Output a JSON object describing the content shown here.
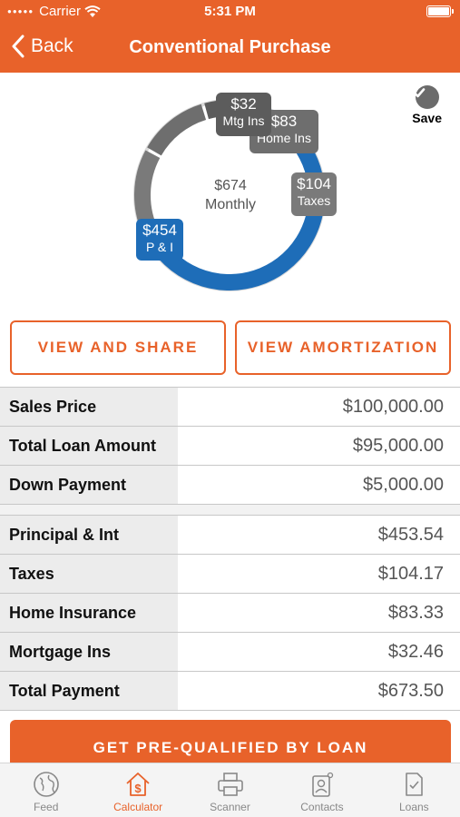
{
  "status_bar": {
    "carrier": "Carrier",
    "time": "5:31 PM"
  },
  "nav": {
    "back_label": "Back",
    "title": "Conventional Purchase"
  },
  "save_label": "Save",
  "chart_data": {
    "type": "pie",
    "center_value": "$674",
    "center_label": "Monthly",
    "slices": [
      {
        "value": "$454",
        "label": "P & I",
        "color": "#1e6db8"
      },
      {
        "value": "$104",
        "label": "Taxes",
        "color": "#7a7a7a"
      },
      {
        "value": "$83",
        "label": "Home Ins",
        "color": "#6e6e6e"
      },
      {
        "value": "$32",
        "label": "Mtg Ins",
        "color": "#5c5c5c"
      }
    ],
    "values": [
      453.54,
      104.17,
      83.33,
      32.46
    ]
  },
  "buttons": {
    "view_share": "VIEW AND SHARE",
    "view_amort": "VIEW AMORTIZATION",
    "prequalify": "GET PRE-QUALIFIED BY LOAN"
  },
  "loan_table": [
    {
      "label": "Sales Price",
      "value": "$100,000.00"
    },
    {
      "label": "Total Loan Amount",
      "value": "$95,000.00"
    },
    {
      "label": "Down Payment",
      "value": "$5,000.00"
    }
  ],
  "payment_table": [
    {
      "label": "Principal & Int",
      "value": "$453.54"
    },
    {
      "label": "Taxes",
      "value": "$104.17"
    },
    {
      "label": "Home Insurance",
      "value": "$83.33"
    },
    {
      "label": "Mortgage Ins",
      "value": "$32.46"
    },
    {
      "label": "Total Payment",
      "value": "$673.50"
    }
  ],
  "tabbar": [
    {
      "label": "Feed",
      "icon": "globe-icon",
      "active": false
    },
    {
      "label": "Calculator",
      "icon": "house-dollar-icon",
      "active": true
    },
    {
      "label": "Scanner",
      "icon": "printer-icon",
      "active": false
    },
    {
      "label": "Contacts",
      "icon": "contacts-icon",
      "active": false
    },
    {
      "label": "Loans",
      "icon": "document-check-icon",
      "active": false
    }
  ],
  "colors": {
    "accent": "#e8622a",
    "pi_blue": "#1e6db8",
    "grey": "#6b6b6b"
  }
}
